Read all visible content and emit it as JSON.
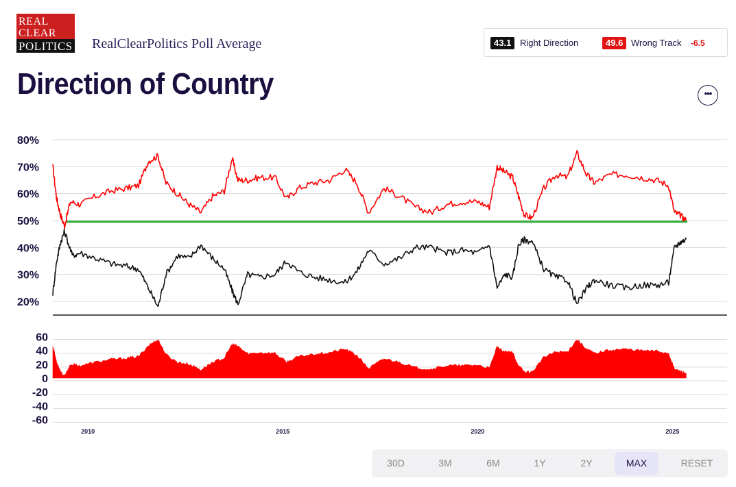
{
  "header": {
    "logo_lines": [
      "REAL",
      "CLEAR",
      "POLITICS"
    ],
    "brand_text": "RealClearPolitics Poll Average",
    "title": "Direction of Country",
    "more_label": "•••"
  },
  "legend": {
    "right_value": "43.1",
    "right_label": "Right Direction",
    "wrong_value": "49.6",
    "wrong_label": "Wrong Track",
    "spread": "-6.5"
  },
  "colors": {
    "right": "#111111",
    "wrong": "#ff0000",
    "spread_fill": "#ff0000",
    "reference_line": "#2fae3a",
    "title": "#1b0f3f"
  },
  "controls": {
    "buttons": [
      "30D",
      "3M",
      "6M",
      "1Y",
      "2Y",
      "MAX",
      "RESET"
    ],
    "active": "MAX"
  },
  "chart_data": [
    {
      "type": "line",
      "name": "main",
      "y_ticks": [
        "80%",
        "70%",
        "60%",
        "50%",
        "40%",
        "30%",
        "20%"
      ],
      "ylim": [
        16,
        80
      ],
      "xlim": [
        2009.1,
        2026.4
      ],
      "reference_line": 49.6,
      "grid": true,
      "series": [
        {
          "name": "Wrong Track",
          "x": [
            2009.1,
            2009.2,
            2009.3,
            2009.4,
            2009.55,
            2009.8,
            2010.2,
            2010.6,
            2011.0,
            2011.3,
            2011.55,
            2011.8,
            2012.0,
            2012.3,
            2012.6,
            2012.9,
            2013.2,
            2013.5,
            2013.7,
            2013.85,
            2014.1,
            2014.4,
            2014.8,
            2015.1,
            2015.4,
            2015.8,
            2016.2,
            2016.6,
            2016.9,
            2017.2,
            2017.6,
            2018.0,
            2018.4,
            2018.8,
            2019.2,
            2019.6,
            2020.0,
            2020.3,
            2020.5,
            2020.7,
            2020.9,
            2021.05,
            2021.2,
            2021.4,
            2021.7,
            2022.0,
            2022.3,
            2022.55,
            2022.8,
            2023.0,
            2023.4,
            2023.8,
            2024.2,
            2024.6,
            2024.9,
            2025.05,
            2025.2,
            2025.35
          ],
          "y": [
            70,
            58,
            52,
            48,
            57,
            56,
            59,
            61,
            62,
            63,
            72,
            74,
            64,
            60,
            56,
            53,
            59,
            61,
            73,
            65,
            65,
            66,
            66,
            58,
            62,
            64,
            65,
            69,
            64,
            53,
            62,
            59,
            55,
            53,
            56,
            57,
            57,
            55,
            70,
            68,
            66,
            59,
            52,
            51,
            62,
            67,
            66,
            75,
            67,
            64,
            67,
            67,
            66,
            65,
            63,
            53,
            52,
            50
          ]
        },
        {
          "name": "Right Direction",
          "x": [
            2009.1,
            2009.2,
            2009.3,
            2009.4,
            2009.6,
            2009.8,
            2010.2,
            2010.6,
            2011.0,
            2011.3,
            2011.55,
            2011.8,
            2012.0,
            2012.3,
            2012.6,
            2012.9,
            2013.2,
            2013.5,
            2013.7,
            2013.85,
            2014.1,
            2014.4,
            2014.8,
            2015.1,
            2015.4,
            2015.8,
            2016.2,
            2016.6,
            2016.9,
            2017.2,
            2017.6,
            2018.0,
            2018.4,
            2018.8,
            2019.2,
            2019.6,
            2020.0,
            2020.3,
            2020.5,
            2020.7,
            2020.9,
            2021.05,
            2021.2,
            2021.4,
            2021.7,
            2022.0,
            2022.3,
            2022.55,
            2022.8,
            2023.0,
            2023.4,
            2023.8,
            2024.2,
            2024.6,
            2024.9,
            2025.05,
            2025.2,
            2025.35
          ],
          "y": [
            23,
            35,
            42,
            46,
            37,
            38,
            36,
            34,
            33,
            32,
            25,
            18,
            30,
            37,
            36,
            41,
            36,
            32,
            24,
            19,
            30,
            29,
            30,
            35,
            31,
            29,
            28,
            27,
            31,
            39,
            34,
            36,
            40,
            40,
            38,
            39,
            38,
            41,
            25,
            30,
            29,
            41,
            43,
            42,
            32,
            29,
            28,
            19,
            25,
            28,
            26,
            25,
            26,
            26,
            27,
            40,
            42,
            43
          ]
        }
      ]
    },
    {
      "type": "area",
      "name": "spread",
      "y_ticks": [
        "60",
        "40",
        "20",
        "0",
        "-20",
        "-40",
        "-60"
      ],
      "ylim": [
        -60,
        60
      ],
      "x_ticks": [
        "2010",
        "2015",
        "2020",
        "2025"
      ],
      "series": [
        {
          "name": "Spread",
          "x": [
            2009.1,
            2009.2,
            2009.3,
            2009.4,
            2009.55,
            2009.8,
            2010.2,
            2010.6,
            2011.0,
            2011.3,
            2011.55,
            2011.8,
            2012.0,
            2012.3,
            2012.6,
            2012.9,
            2013.2,
            2013.5,
            2013.7,
            2013.85,
            2014.1,
            2014.4,
            2014.8,
            2015.1,
            2015.4,
            2015.8,
            2016.2,
            2016.6,
            2016.9,
            2017.2,
            2017.6,
            2018.0,
            2018.4,
            2018.8,
            2019.2,
            2019.6,
            2020.0,
            2020.3,
            2020.5,
            2020.7,
            2020.9,
            2021.05,
            2021.2,
            2021.4,
            2021.7,
            2022.0,
            2022.3,
            2022.55,
            2022.8,
            2023.0,
            2023.4,
            2023.8,
            2024.2,
            2024.6,
            2024.9,
            2025.05,
            2025.2,
            2025.35
          ],
          "y": [
            47,
            23,
            10,
            2,
            20,
            18,
            23,
            27,
            29,
            31,
            47,
            56,
            34,
            23,
            20,
            12,
            23,
            29,
            49,
            46,
            35,
            37,
            36,
            23,
            31,
            35,
            37,
            42,
            33,
            14,
            28,
            23,
            15,
            13,
            18,
            18,
            19,
            14,
            45,
            38,
            37,
            18,
            9,
            9,
            30,
            38,
            38,
            56,
            42,
            36,
            41,
            42,
            40,
            39,
            36,
            13,
            10,
            7
          ]
        }
      ]
    }
  ]
}
